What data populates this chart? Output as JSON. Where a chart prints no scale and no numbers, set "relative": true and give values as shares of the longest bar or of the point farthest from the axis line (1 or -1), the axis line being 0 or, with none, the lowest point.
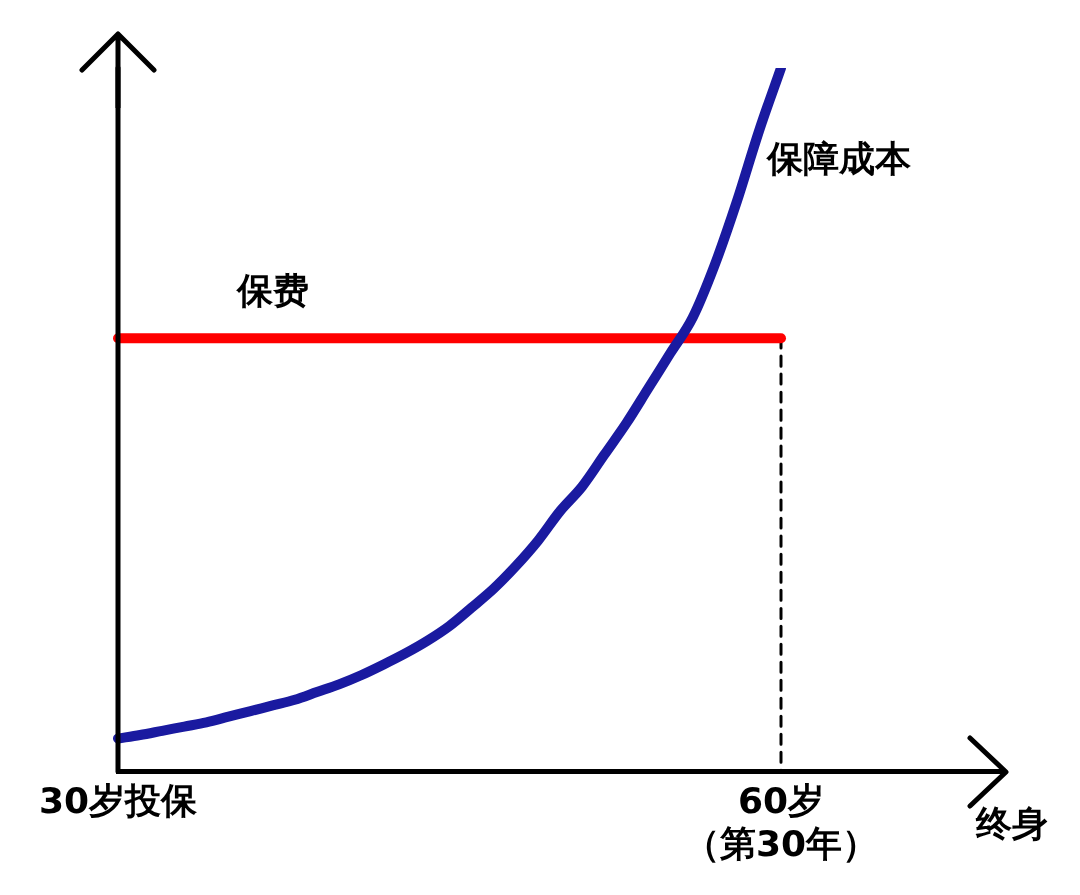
{
  "chart_data": {
    "type": "line",
    "relative": true,
    "xlabel": "终身",
    "grid": false,
    "legend": false,
    "marker": "none",
    "categories": [
      "30岁投保",
      null,
      null,
      null,
      null,
      null,
      null,
      null,
      null,
      null,
      null,
      null,
      null,
      null,
      null,
      null,
      null,
      null,
      null,
      null,
      null,
      null,
      null,
      null,
      null,
      null,
      null,
      null,
      null,
      null,
      "60岁（第30年）",
      null,
      null,
      null,
      null,
      null,
      null,
      null,
      null,
      null,
      null
    ],
    "series": [
      {
        "name": "保障成本",
        "color": "#1a1aa0",
        "values": [
          0.047,
          0.052,
          0.058,
          0.064,
          0.07,
          0.078,
          0.086,
          0.094,
          0.102,
          0.113,
          0.124,
          0.137,
          0.152,
          0.168,
          0.186,
          0.207,
          0.233,
          0.26,
          0.292,
          0.328,
          0.37,
          0.405,
          0.45,
          0.495,
          0.545,
          0.595,
          0.645,
          0.72,
          0.81,
          0.91,
          1,
          null,
          null,
          null,
          null,
          null,
          null,
          null,
          null,
          null,
          null
        ]
      },
      {
        "name": "保费",
        "color": "#ff0000",
        "values": [
          0.616,
          0.616,
          0.616,
          0.616,
          0.616,
          0.616,
          0.616,
          0.616,
          0.616,
          0.616,
          0.616,
          0.616,
          0.616,
          0.616,
          0.616,
          0.616,
          0.616,
          0.616,
          0.616,
          0.616,
          0.616,
          0.616,
          0.616,
          0.616,
          0.616,
          0.616,
          0.616,
          0.616,
          0.616,
          0.616,
          0.616,
          null,
          null,
          null,
          null,
          null,
          null,
          null,
          null,
          null,
          null
        ]
      },
      {
        "color": "#000000",
        "x": [
          "60岁（第30年）",
          "60岁（第30年）"
        ],
        "values": [
          0.616,
          0
        ],
        "line_style": "dashed"
      }
    ]
  }
}
